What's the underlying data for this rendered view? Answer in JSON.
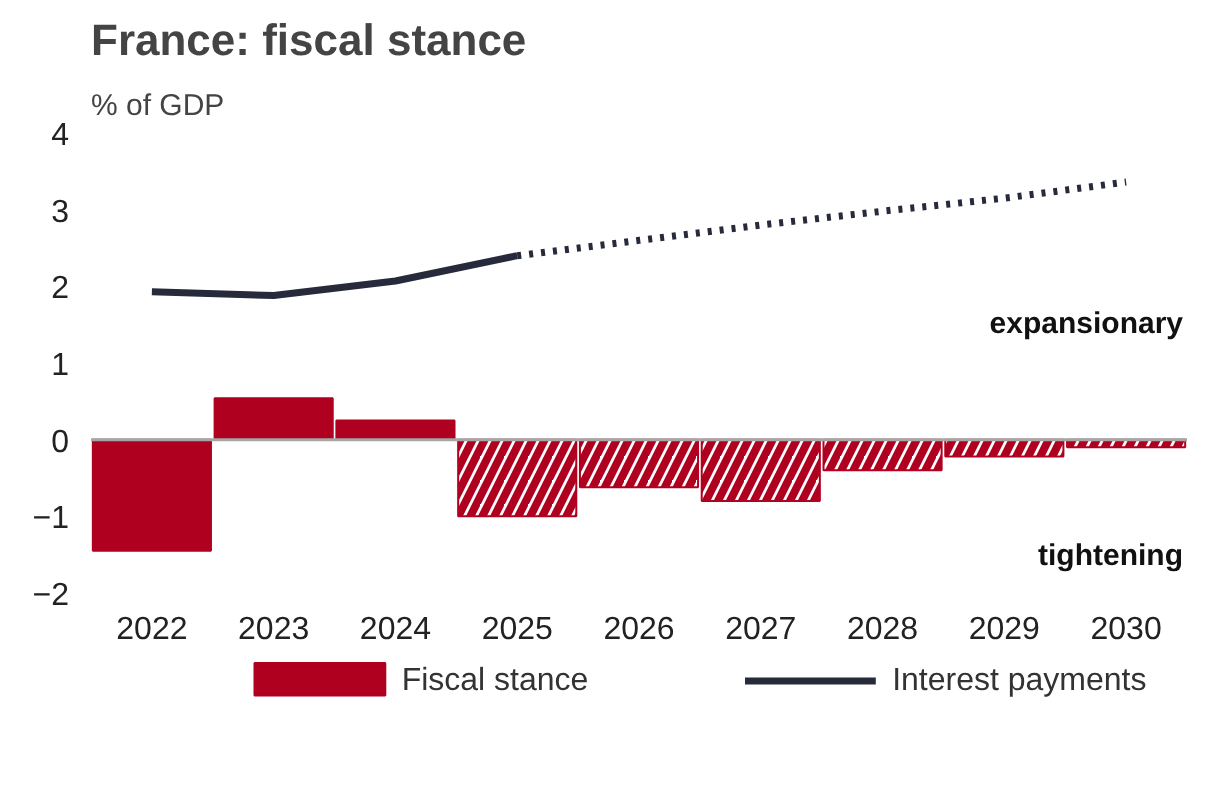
{
  "chart_data": {
    "type": "bar",
    "title": "France: fiscal stance",
    "ylabel": "% of GDP",
    "categories": [
      "2022",
      "2023",
      "2024",
      "2025",
      "2026",
      "2027",
      "2028",
      "2029",
      "2030"
    ],
    "series": [
      {
        "name": "Fiscal stance",
        "color": "#b00020",
        "values": [
          -1.45,
          0.54,
          0.25,
          null,
          null,
          null,
          null,
          null,
          null
        ]
      },
      {
        "color": "#b00020",
        "values": [
          null,
          null,
          null,
          -1.0,
          -0.62,
          -0.8,
          -0.4,
          -0.22,
          -0.1
        ]
      },
      {
        "name": "Interest payments",
        "type": "line",
        "color": "#262a3b",
        "line_style": "solid",
        "values": [
          1.93,
          1.88,
          2.07,
          2.4,
          null,
          null,
          null,
          null,
          null
        ]
      },
      {
        "type": "line",
        "color": "#262a3b",
        "line_style": "dotted",
        "values": [
          null,
          null,
          null,
          2.4,
          2.6,
          2.8,
          2.98,
          3.15,
          3.36
        ]
      }
    ],
    "ylim": [
      -2,
      4
    ],
    "yticks": [
      -2,
      -1,
      0,
      1,
      2,
      3,
      4
    ],
    "ref_lines": [
      {
        "axis": "y",
        "value": 0,
        "color": "#a6a6a6"
      }
    ],
    "annotations": [
      "expansionary",
      "tightening"
    ],
    "grid": false,
    "legend": "bottom"
  }
}
